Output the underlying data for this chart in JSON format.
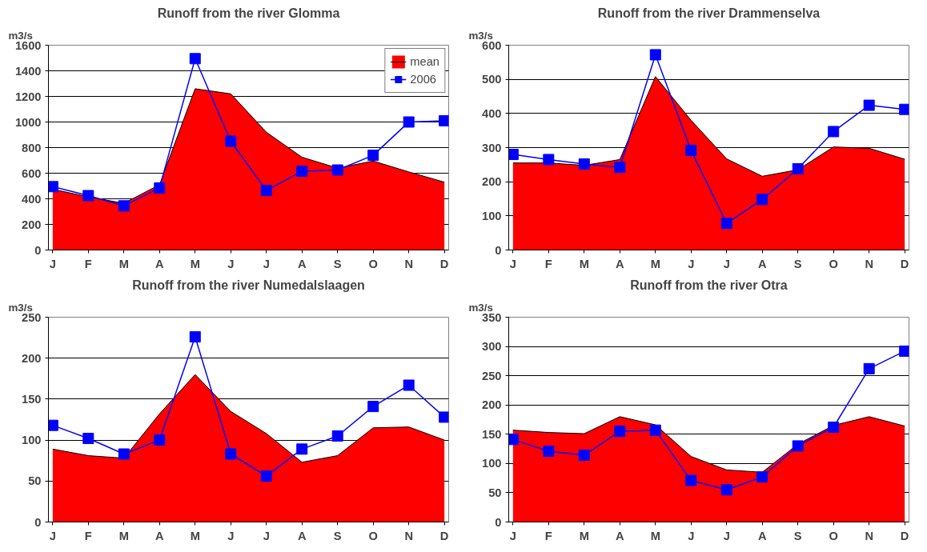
{
  "chart_data": [
    {
      "type": "area",
      "title": "Runoff from the river Glomma",
      "ylabel": "m3/s",
      "categories": [
        "J",
        "F",
        "M",
        "A",
        "M",
        "J",
        "J",
        "A",
        "S",
        "O",
        "N",
        "D"
      ],
      "ylim": [
        0,
        1600
      ],
      "yticks": [
        0,
        200,
        400,
        600,
        800,
        1000,
        1200,
        1400,
        1600
      ],
      "grid": "y",
      "legend": "top right",
      "series": [
        {
          "name": "mean",
          "color": "#ff0000",
          "values": [
            475,
            415,
            365,
            510,
            1260,
            1220,
            920,
            725,
            640,
            695,
            610,
            530
          ]
        },
        {
          "name": "2006",
          "type": "line",
          "color": "#0000ff",
          "marker": "square",
          "values": [
            495,
            425,
            345,
            485,
            1495,
            850,
            465,
            615,
            625,
            740,
            1000,
            1010
          ]
        }
      ]
    },
    {
      "type": "area",
      "title": "Runoff from the river Drammenselva",
      "ylabel": "m3/s",
      "categories": [
        "J",
        "F",
        "M",
        "A",
        "M",
        "J",
        "J",
        "A",
        "S",
        "O",
        "N",
        "D"
      ],
      "ylim": [
        0,
        600
      ],
      "yticks": [
        0,
        100,
        200,
        300,
        400,
        500,
        600
      ],
      "grid": "y",
      "series": [
        {
          "color": "#ff0000",
          "values": [
            255,
            255,
            248,
            265,
            508,
            380,
            267,
            216,
            235,
            302,
            298,
            266
          ]
        },
        {
          "type": "line",
          "color": "#0000ff",
          "marker": "square",
          "values": [
            280,
            265,
            252,
            242,
            572,
            292,
            78,
            148,
            238,
            347,
            424,
            412
          ]
        }
      ]
    },
    {
      "type": "area",
      "title": "Runoff from the river Numedalslaagen",
      "ylabel": "m3/s",
      "categories": [
        "J",
        "F",
        "M",
        "A",
        "M",
        "J",
        "J",
        "A",
        "S",
        "O",
        "N",
        "D"
      ],
      "ylim": [
        0,
        250
      ],
      "yticks": [
        0,
        50,
        100,
        150,
        200,
        250
      ],
      "grid": "y",
      "series": [
        {
          "color": "#ff0000",
          "values": [
            89,
            81,
            78,
            132,
            180,
            135,
            108,
            73,
            81,
            115,
            116,
            100
          ]
        },
        {
          "type": "line",
          "color": "#0000ff",
          "marker": "square",
          "values": [
            118,
            102,
            83,
            100,
            226,
            83,
            56,
            89,
            105,
            141,
            167,
            128
          ]
        }
      ]
    },
    {
      "type": "area",
      "title": "Runoff from the river Otra",
      "ylabel": "m3/s",
      "categories": [
        "J",
        "F",
        "M",
        "A",
        "M",
        "J",
        "J",
        "A",
        "S",
        "O",
        "N",
        "D"
      ],
      "ylim": [
        0,
        350
      ],
      "yticks": [
        0,
        50,
        100,
        150,
        200,
        250,
        300,
        350
      ],
      "grid": "y",
      "series": [
        {
          "color": "#ff0000",
          "values": [
            157,
            153,
            151,
            180,
            166,
            112,
            89,
            85,
            133,
            165,
            180,
            164
          ]
        },
        {
          "type": "line",
          "color": "#0000ff",
          "marker": "square",
          "values": [
            141,
            121,
            114,
            155,
            157,
            71,
            55,
            77,
            130,
            162,
            262,
            292
          ]
        }
      ]
    }
  ]
}
